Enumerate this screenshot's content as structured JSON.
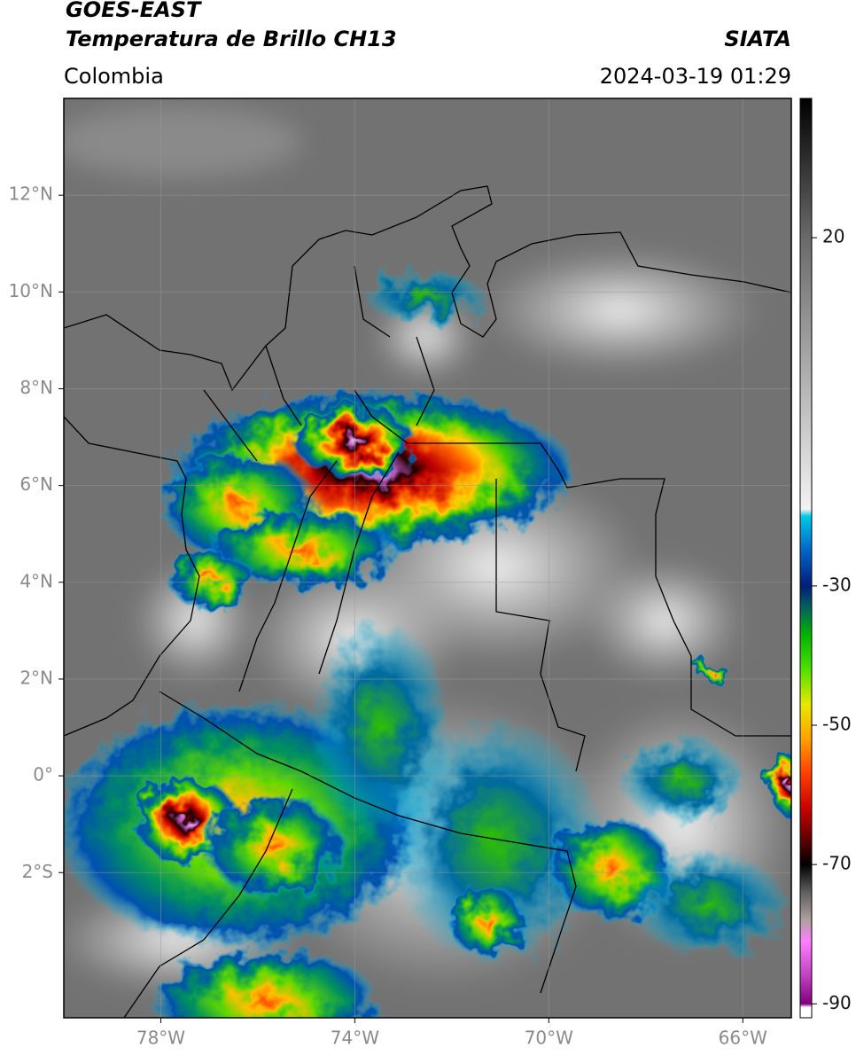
{
  "header": {
    "title": "GOES-EAST",
    "subtitle": "Temperatura de Brillo CH13",
    "source": "SIATA",
    "region": "Colombia",
    "datetime": "2024-03-19 01:29"
  },
  "map": {
    "xlim": [
      -80,
      -65
    ],
    "ylim": [
      -5,
      14
    ],
    "xticks": [
      {
        "value": -78,
        "label": "78°W"
      },
      {
        "value": -74,
        "label": "74°W"
      },
      {
        "value": -70,
        "label": "70°W"
      },
      {
        "value": -66,
        "label": "66°W"
      }
    ],
    "yticks": [
      {
        "value": 12,
        "label": "12°N"
      },
      {
        "value": 10,
        "label": "10°N"
      },
      {
        "value": 8,
        "label": "8°N"
      },
      {
        "value": 6,
        "label": "6°N"
      },
      {
        "value": 4,
        "label": "4°N"
      },
      {
        "value": 2,
        "label": "2°N"
      },
      {
        "value": 0,
        "label": "0°"
      },
      {
        "value": -2,
        "label": "2°S"
      }
    ],
    "grid": true
  },
  "colorbar": {
    "lim": [
      -92,
      40
    ],
    "ticks": [
      20,
      -30,
      -50,
      -70,
      -90
    ],
    "stops": [
      {
        "value": 40,
        "color": "#000000"
      },
      {
        "value": 20,
        "color": "#6a6a6a"
      },
      {
        "value": -19,
        "color": "#f2f2f2"
      },
      {
        "value": -20,
        "color": "#00c8e8"
      },
      {
        "value": -25,
        "color": "#0064c8"
      },
      {
        "value": -30,
        "color": "#001e78"
      },
      {
        "value": -33,
        "color": "#006060"
      },
      {
        "value": -37,
        "color": "#00b400"
      },
      {
        "value": -42,
        "color": "#50e000"
      },
      {
        "value": -47,
        "color": "#e8e800"
      },
      {
        "value": -52,
        "color": "#ffa000"
      },
      {
        "value": -57,
        "color": "#ff3c00"
      },
      {
        "value": -62,
        "color": "#c80000"
      },
      {
        "value": -67,
        "color": "#500000"
      },
      {
        "value": -70,
        "color": "#000000"
      },
      {
        "value": -74,
        "color": "#606060"
      },
      {
        "value": -78,
        "color": "#b0a0a0"
      },
      {
        "value": -81,
        "color": "#ff80ff"
      },
      {
        "value": -86,
        "color": "#c040c0"
      },
      {
        "value": -90,
        "color": "#800080"
      },
      {
        "value": -90.5,
        "color": "#ffffff"
      },
      {
        "value": -92,
        "color": "#ffffff"
      }
    ]
  }
}
